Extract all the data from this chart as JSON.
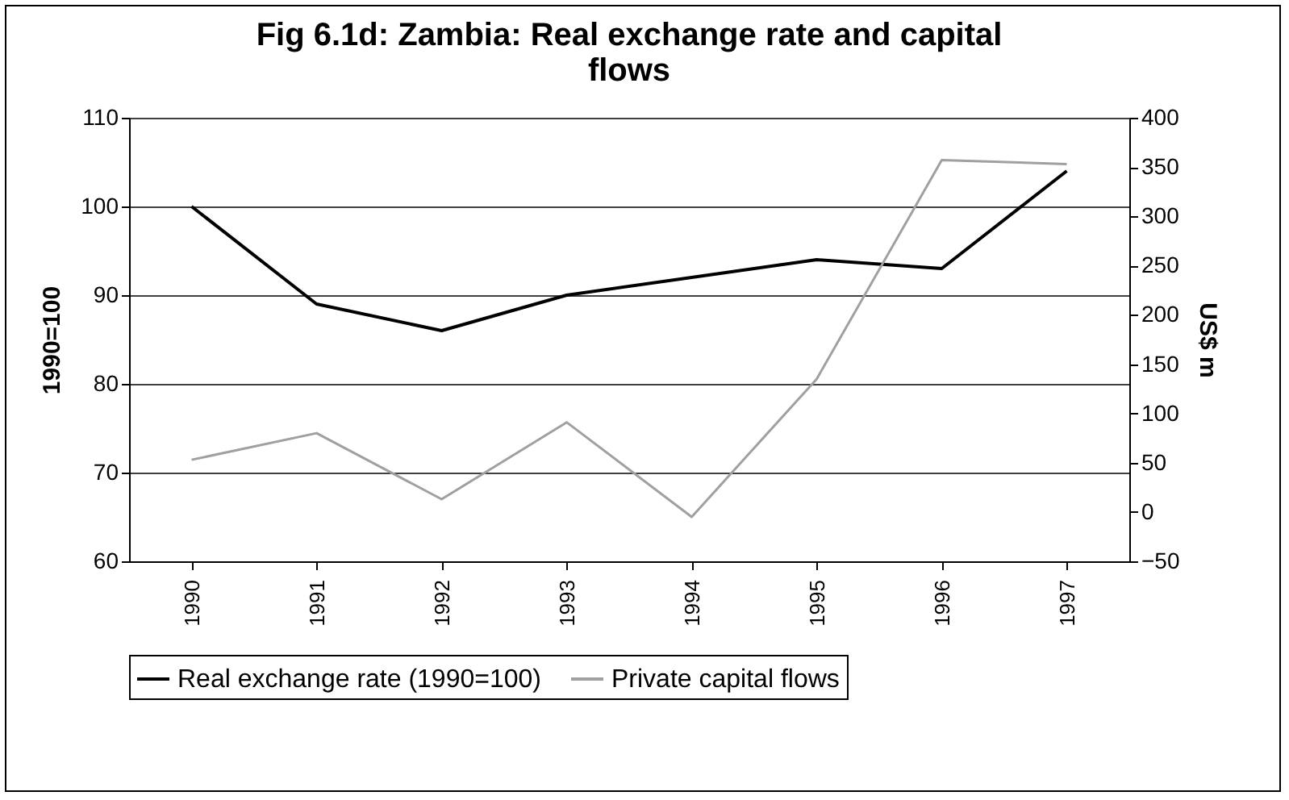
{
  "chart_data": {
    "type": "line",
    "title": "Fig 6.1d: Zambia: Real exchange rate and capital flows",
    "categories": [
      "1990",
      "1991",
      "1992",
      "1993",
      "1994",
      "1995",
      "1996",
      "1997"
    ],
    "series": [
      {
        "name": "Real exchange rate (1990=100)",
        "color": "#000000",
        "values": [
          100,
          89,
          86,
          90,
          92,
          94,
          93,
          104
        ]
      },
      {
        "name": "Private capital flows",
        "color": "#a0a0a0",
        "axis": "y2",
        "values": [
          53,
          80,
          13,
          91,
          -5,
          135,
          357,
          353
        ]
      }
    ],
    "ylabel": "1990=100",
    "y2label": "US$ m",
    "ylim": [
      60,
      110
    ],
    "yticks": [
      60,
      70,
      80,
      90,
      100,
      110
    ],
    "y2lim": [
      -50,
      400
    ],
    "y2ticks": [
      -50,
      0,
      50,
      100,
      150,
      200,
      250,
      300,
      350,
      400
    ],
    "grid": "y",
    "legend": "bottom",
    "marker": "none",
    "line_style": "solid"
  }
}
